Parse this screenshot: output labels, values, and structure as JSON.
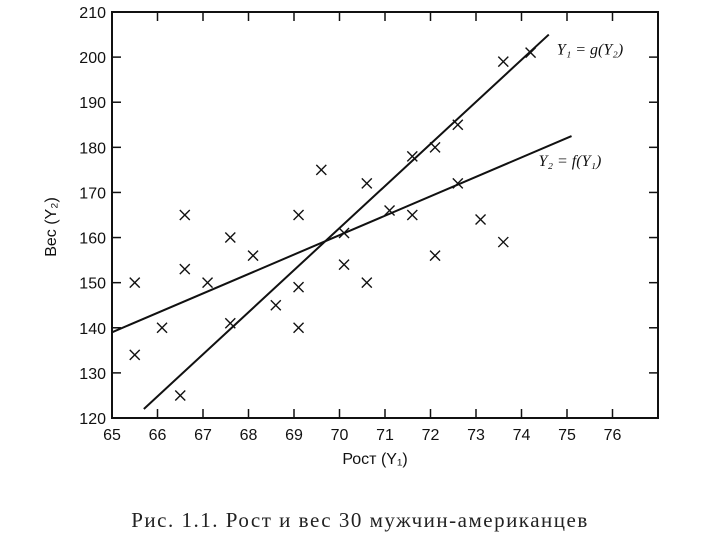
{
  "caption": "Рис. 1.1. Рост и вес 30 мужчин-американцев",
  "chart_data": {
    "type": "scatter",
    "title": "",
    "xlabel": "Рост (Y₁)",
    "ylabel": "Вес (Y₂)",
    "xlim": [
      65,
      77
    ],
    "ylim": [
      120,
      210
    ],
    "xticks": [
      65,
      66,
      67,
      68,
      69,
      70,
      71,
      72,
      73,
      74,
      75,
      76
    ],
    "yticks": [
      120,
      130,
      140,
      150,
      160,
      170,
      180,
      190,
      200,
      210
    ],
    "grid": false,
    "marker": "x",
    "points": [
      {
        "x": 65.5,
        "y": 150
      },
      {
        "x": 65.5,
        "y": 134
      },
      {
        "x": 66.1,
        "y": 140
      },
      {
        "x": 66.5,
        "y": 125
      },
      {
        "x": 66.6,
        "y": 165
      },
      {
        "x": 66.6,
        "y": 153
      },
      {
        "x": 67.1,
        "y": 150
      },
      {
        "x": 67.6,
        "y": 160
      },
      {
        "x": 67.6,
        "y": 141
      },
      {
        "x": 68.1,
        "y": 156
      },
      {
        "x": 68.6,
        "y": 145
      },
      {
        "x": 69.1,
        "y": 165
      },
      {
        "x": 69.1,
        "y": 149
      },
      {
        "x": 69.1,
        "y": 140
      },
      {
        "x": 69.6,
        "y": 175
      },
      {
        "x": 70.1,
        "y": 161
      },
      {
        "x": 70.1,
        "y": 154
      },
      {
        "x": 70.6,
        "y": 172
      },
      {
        "x": 70.6,
        "y": 150
      },
      {
        "x": 71.1,
        "y": 166
      },
      {
        "x": 71.6,
        "y": 178
      },
      {
        "x": 71.6,
        "y": 165
      },
      {
        "x": 72.1,
        "y": 180
      },
      {
        "x": 72.1,
        "y": 156
      },
      {
        "x": 72.6,
        "y": 185
      },
      {
        "x": 72.6,
        "y": 172
      },
      {
        "x": 73.1,
        "y": 164
      },
      {
        "x": 73.6,
        "y": 159
      },
      {
        "x": 73.6,
        "y": 199
      },
      {
        "x": 74.2,
        "y": 201
      }
    ],
    "lines": [
      {
        "name": "Y₁ = g(Y₂)",
        "x": [
          65.7,
          74.6
        ],
        "y": [
          122,
          205
        ]
      },
      {
        "name": "Y₂ = f(Y₁)",
        "x": [
          65.0,
          75.1
        ],
        "y": [
          139,
          182.5
        ]
      }
    ]
  }
}
